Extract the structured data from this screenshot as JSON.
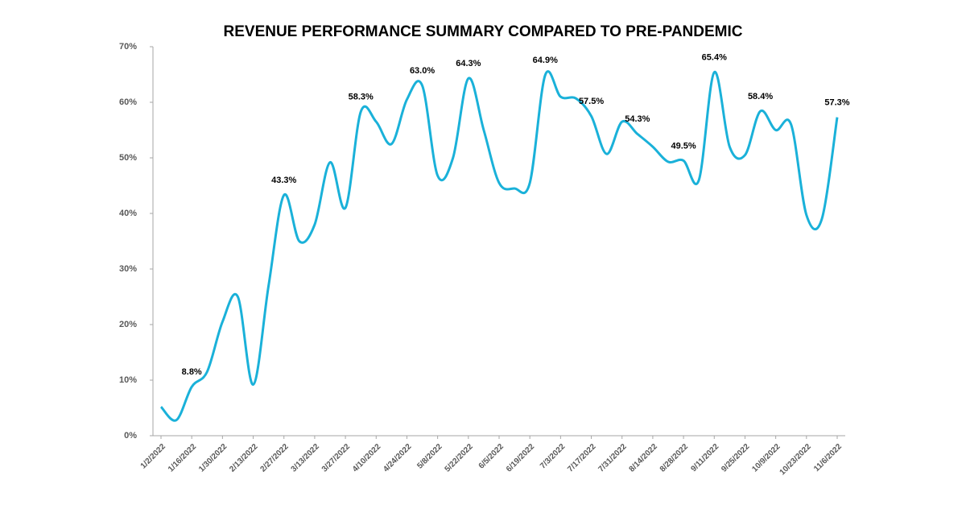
{
  "chart_data": {
    "type": "line",
    "title": "REVENUE PERFORMANCE SUMMARY COMPARED TO PRE-PANDEMIC",
    "categories": [
      "1/2/2022",
      null,
      "1/16/2022",
      null,
      "1/30/2022",
      null,
      "2/13/2022",
      null,
      "2/27/2022",
      null,
      "3/13/2022",
      null,
      "3/27/2022",
      null,
      "4/10/2022",
      null,
      "4/24/2022",
      null,
      "5/8/2022",
      null,
      "5/22/2022",
      null,
      "6/5/2022",
      null,
      "6/19/2022",
      null,
      "7/3/2022",
      null,
      "7/17/2022",
      null,
      "7/31/2022",
      null,
      "8/14/2022",
      null,
      "8/28/2022",
      null,
      "9/11/2022",
      null,
      "9/25/2022",
      null,
      "10/9/2022",
      null,
      "10/23/2022",
      null,
      "11/6/2022"
    ],
    "values": [
      5.2,
      2.8,
      8.8,
      11.5,
      20.5,
      25.0,
      9.2,
      27,
      43.3,
      35.0,
      38,
      49.2,
      41,
      58.3,
      56.5,
      52.5,
      60.5,
      63.0,
      46.8,
      50,
      64.3,
      55,
      45.5,
      44.5,
      45.5,
      64.9,
      61,
      60.7,
      57.5,
      50.7,
      56.5,
      54.3,
      52,
      49.3,
      49.5,
      46,
      65.4,
      52,
      50.5,
      58.4,
      55,
      56,
      39.7,
      39,
      57.3
    ],
    "value_labels": [
      null,
      null,
      "8.8%",
      null,
      null,
      null,
      null,
      null,
      "43.3%",
      null,
      null,
      null,
      null,
      "58.3%",
      null,
      null,
      null,
      "63.0%",
      null,
      null,
      "64.3%",
      null,
      null,
      null,
      null,
      "64.9%",
      null,
      null,
      "57.5%",
      null,
      null,
      "54.3%",
      null,
      null,
      "49.5%",
      null,
      "65.4%",
      null,
      null,
      "58.4%",
      null,
      null,
      null,
      null,
      "57.3%"
    ],
    "color": "#1ab1d9",
    "ylim": [
      0,
      70
    ],
    "yticks": [
      {
        "value": 0,
        "label": "0%"
      },
      {
        "value": 10,
        "label": "10%"
      },
      {
        "value": 20,
        "label": "20%"
      },
      {
        "value": 30,
        "label": "30%"
      },
      {
        "value": 40,
        "label": "40%"
      },
      {
        "value": 50,
        "label": "50%"
      },
      {
        "value": 60,
        "label": "60%"
      },
      {
        "value": 70,
        "label": "70%"
      }
    ]
  }
}
